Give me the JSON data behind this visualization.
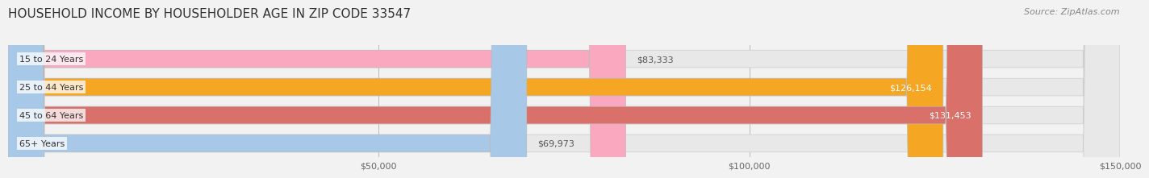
{
  "title": "HOUSEHOLD INCOME BY HOUSEHOLDER AGE IN ZIP CODE 33547",
  "source": "Source: ZipAtlas.com",
  "categories": [
    "15 to 24 Years",
    "25 to 44 Years",
    "45 to 64 Years",
    "65+ Years"
  ],
  "values": [
    83333,
    126154,
    131453,
    69973
  ],
  "bar_colors": [
    "#f9a8c0",
    "#f5a623",
    "#d9706a",
    "#a8c8e8"
  ],
  "label_colors": [
    "#555555",
    "#ffffff",
    "#ffffff",
    "#555555"
  ],
  "xlim": [
    0,
    150000
  ],
  "xtick_labels": [
    "$50,000",
    "$100,000",
    "$150,000"
  ],
  "bg_color": "#f2f2f2",
  "bar_bg_color": "#e8e8e8",
  "title_fontsize": 11,
  "source_fontsize": 8,
  "label_fontsize": 8,
  "tick_fontsize": 8,
  "category_fontsize": 8
}
